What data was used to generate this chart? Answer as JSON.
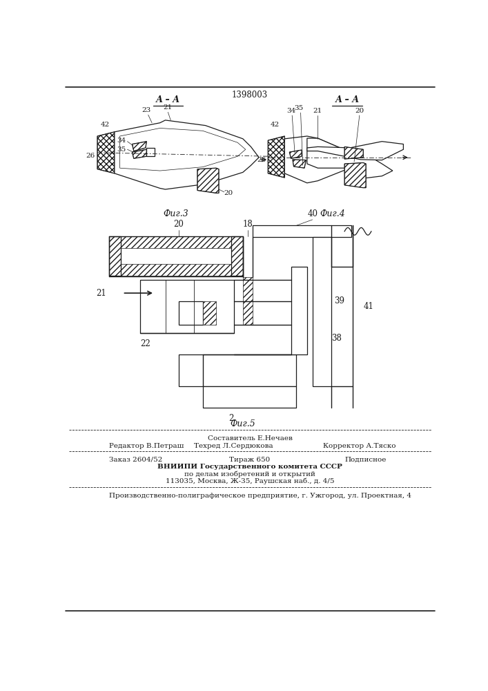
{
  "patent_number": "1398003",
  "fig3_label": "Фиг.3",
  "fig4_label": "Фиг.4",
  "fig5_label": "Фиг.5",
  "editor_line": "Редактор В.Петраш",
  "composer_line": "Составитель Е.Нечаев",
  "techred_line": "Техред Л.Сердюкова",
  "corrector_line": "Корректор А.Тяско",
  "order_line": "Заказ 2604/52",
  "tirage_line": "Тираж 650",
  "podpisnoe_line": "Подписное",
  "vnipi_line1": "ВНИИПИ Государственного комитета СССР",
  "vnipi_line2": "по делам изобретений и открытий",
  "vnipi_line3": "113035, Москва, Ж-35, Раушская наб., д. 4/5",
  "printer_line": "Производственно-полиграфическое предприятие, г. Ужгород, ул. Проектная, 4",
  "bg_color": "#ffffff",
  "line_color": "#1a1a1a"
}
